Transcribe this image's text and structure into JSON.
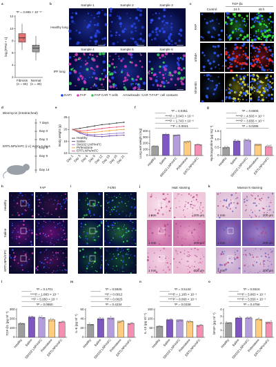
{
  "panel_labels": [
    "a",
    "b",
    "c",
    "d",
    "e",
    "f",
    "g",
    "h",
    "i",
    "j",
    "k",
    "l",
    "m",
    "n",
    "o"
  ],
  "chart_data": [
    {
      "type": "box",
      "ylabel": "log₂[TPM + 1]",
      "categories": [
        "Fibrosis",
        "Normal"
      ],
      "n_labels": [
        "(n = 60)",
        "(n = 40)"
      ],
      "annotation": "*P = 3.655 × 10⁻¹⁷",
      "ylim": [
        2,
        12
      ],
      "yticks": [
        2,
        4,
        6,
        8,
        10,
        12
      ],
      "boxes": [
        {
          "color": "#e57373",
          "whisker_low": 6.5,
          "q1": 7.8,
          "median": 8.5,
          "q3": 9.2,
          "whisker_high": 10.8
        },
        {
          "color": "#9e9e9e",
          "whisker_low": 4.8,
          "q1": 6.2,
          "median": 6.8,
          "q3": 7.3,
          "whisker_high": 8.8
        }
      ]
    },
    {
      "type": "line",
      "ylabel": "Body weight (g)",
      "categories": [
        "Day 1",
        "Day 3",
        "Day 6",
        "Day 9",
        "Day 12",
        "Day 15",
        "Day 18",
        "Day 21"
      ],
      "ylim": [
        10,
        25
      ],
      "yticks": [
        10,
        15,
        20,
        25
      ],
      "series": [
        {
          "name": "Healthy",
          "color": "#333333",
          "values": [
            20,
            20.5,
            21,
            21.5,
            22,
            22.3,
            22.7,
            23
          ]
        },
        {
          "name": "Saline",
          "color": "#6a3d9a",
          "values": [
            20,
            18.5,
            17.5,
            17.2,
            17,
            17.3,
            17.5,
            17.6
          ]
        },
        {
          "name": "SM102 LNP/mFC",
          "color": "#9575cd",
          "values": [
            20,
            18.8,
            18,
            17.8,
            17.9,
            18.2,
            18.4,
            18.6
          ]
        },
        {
          "name": "Pirfenidone",
          "color": "#f0a030",
          "values": [
            20,
            19,
            18.7,
            18.8,
            19.2,
            19.5,
            19.8,
            20
          ]
        },
        {
          "name": "ERTLNPs/mFC",
          "color": "#e8557a",
          "values": [
            20,
            19.4,
            19.6,
            20,
            20.4,
            20.8,
            21,
            21.3
          ]
        }
      ]
    },
    {
      "type": "bar",
      "ylabel": "Lung wet weight (mg)",
      "categories": [
        "Healthy",
        "Saline",
        "SM102 LNP/mFC",
        "Pirfenidone",
        "ERTLNPs/mFC"
      ],
      "values": [
        150,
        350,
        340,
        230,
        180
      ],
      "colors": [
        "#9e9e9e",
        "#7e57c2",
        "#b39ddb",
        "#ffcc80",
        "#f48fb1"
      ],
      "ylim": [
        0,
        400
      ],
      "yticks": [
        0,
        100,
        200,
        300,
        400
      ],
      "annotations": [
        "*P = 0.0351",
        "****P = 3.043 × 10⁻⁶",
        "****P = 1.743 × 10⁻⁶",
        "**P = 0.0041"
      ]
    },
    {
      "type": "bar",
      "ylabel": "Hydroxyproline (µg mg⁻¹)",
      "categories": [
        "Healthy",
        "Saline",
        "SM102 LNP/mFC",
        "Pirfenidone",
        "ERTLNPs/mFC"
      ],
      "values": [
        0.5,
        0.9,
        0.95,
        0.7,
        0.55
      ],
      "colors": [
        "#9e9e9e",
        "#7e57c2",
        "#b39ddb",
        "#ffcc80",
        "#f48fb1"
      ],
      "ylim": [
        0,
        1.5
      ],
      "yticks": [
        0,
        0.5,
        {
          "value": 1,
          "label": "1.0"
        },
        1.5
      ],
      "annotations": [
        "*P = 0.6606",
        "****P = 4.503 × 10⁻⁵",
        "****P = 3.655 × 10⁻⁶",
        "*P = 0.0285"
      ]
    },
    {
      "type": "bar",
      "ylabel": "TGF-β1 (pg ml⁻¹)",
      "categories": [
        "Healthy",
        "Saline",
        "SM102 LNP/mFC",
        "Pirfenidone",
        "ERTLNPs/mFC"
      ],
      "values": [
        150,
        220,
        215,
        190,
        165
      ],
      "colors": [
        "#9e9e9e",
        "#7e57c2",
        "#b39ddb",
        "#ffcc80",
        "#f48fb1"
      ],
      "ylim": [
        0,
        300
      ],
      "yticks": [
        0,
        100,
        200,
        300
      ],
      "annotations": [
        "*P = 0.1701",
        "****P = 1.883 × 10⁻⁷",
        "**P = 5.950 × 10⁻⁶",
        "*P = 0.0650"
      ]
    },
    {
      "type": "bar",
      "ylabel": "IL-6 (pg ml⁻¹)",
      "categories": [
        "Healthy",
        "Saline",
        "SM102 LNP/mFC",
        "Pirfenidone",
        "ERTLNPs/mFC"
      ],
      "values": [
        28,
        40,
        42,
        35,
        30
      ],
      "colors": [
        "#9e9e9e",
        "#7e57c2",
        "#b39ddb",
        "#ffcc80",
        "#f48fb1"
      ],
      "ylim": [
        0,
        60
      ],
      "yticks": [
        0,
        20,
        40,
        60
      ],
      "annotations": [
        "*P = 0.5925",
        "**P = 0.0012",
        "**P = 0.0025",
        "*P = 0.4234"
      ]
    },
    {
      "type": "bar",
      "ylabel": "IL-13 (pg ml⁻¹)",
      "categories": [
        "Healthy",
        "Saline",
        "SM102 LNP/mFC",
        "Pirfenidone",
        "ERTLNPs/mFC"
      ],
      "values": [
        60,
        95,
        95,
        85,
        65
      ],
      "colors": [
        "#9e9e9e",
        "#7e57c2",
        "#b39ddb",
        "#ffcc80",
        "#f48fb1"
      ],
      "ylim": [
        0,
        150
      ],
      "yticks": [
        0,
        50,
        100,
        150
      ],
      "annotations": [
        "*P = 0.5134",
        "****P = 1.183 × 10⁻⁵",
        "****P = 8.060 × 10⁻⁶",
        "*P = 0.0338"
      ]
    },
    {
      "type": "bar",
      "ylabel": "bFGF (pg ml⁻¹)",
      "categories": [
        "Healthy",
        "Saline",
        "SM102 LNP/mFC",
        "Pirfenidone",
        "ERTLNPs/mFC"
      ],
      "values": [
        2.1,
        2.8,
        2.8,
        2.6,
        2.2
      ],
      "colors": [
        "#9e9e9e",
        "#7e57c2",
        "#b39ddb",
        "#ffcc80",
        "#f48fb1"
      ],
      "ylim": [
        0,
        4
      ],
      "yticks": [
        0,
        1,
        2,
        3,
        4
      ],
      "annotations": [
        "*P = 0.9316",
        "****P = 5.863 × 10⁻⁵",
        "****P = 5.550 × 10⁻⁵",
        "*P = 0.4756"
      ]
    }
  ],
  "panel_b": {
    "samples": [
      "Sample 1",
      "Sample 2",
      "Sample 3",
      "Sample 4",
      "Sample 5",
      "Sample 6"
    ],
    "rows": [
      "Healthy lung",
      "IPF lung"
    ],
    "scale": "10 µm",
    "legend": [
      "DAPI",
      "FAP",
      "FAP CAR T cells"
    ],
    "legend_note": "Arrowheads: CAR T-FAP⁺ cell contacts"
  },
  "panel_c": {
    "header": "TGF-β1",
    "columns": [
      "Control",
      "24 h",
      "48 h"
    ],
    "rows": [
      "FAP",
      "αSMA",
      "Vimentin"
    ]
  },
  "panel_d": {
    "drug": "Bleomycin (intratracheal)",
    "treatment": "ERTLNPs/mFC (i.v.) every 3 days",
    "timeline": [
      "7 days",
      "Day 0",
      "Day 3",
      "Day 6",
      "Day 9",
      "Day 14"
    ]
  },
  "panels_h_to_k": {
    "titles": [
      "FAP",
      "F4/80",
      "H&E staining",
      "Masson's staining"
    ],
    "rows": [
      "Healthy",
      "Saline",
      "ERTLNPs/mFC"
    ],
    "scale_big": "1 mm",
    "scale_zoom": "200 µm"
  }
}
